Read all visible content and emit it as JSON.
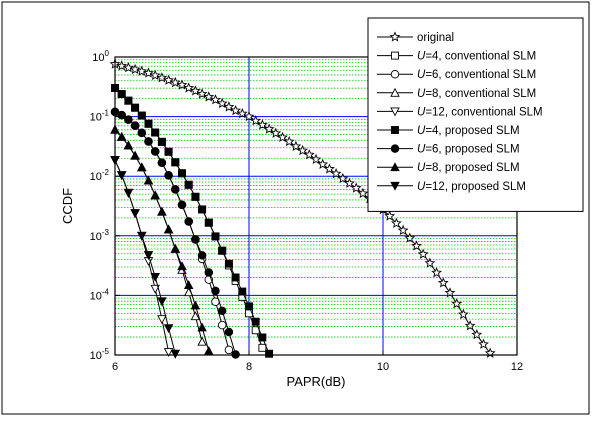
{
  "chart_data": {
    "type": "line",
    "x_label": "PAPR(dB)",
    "y_label": "CCDF",
    "xlim": [
      6,
      12
    ],
    "xticks": [
      6,
      8,
      10,
      12
    ],
    "ylim": [
      1e-05,
      1
    ],
    "y_log_scale": true,
    "yticks": [
      {
        "value": 1,
        "label": "10^0"
      },
      {
        "value": 0.1,
        "label": "10^-1"
      },
      {
        "value": 0.01,
        "label": "10^-2"
      },
      {
        "value": 0.001,
        "label": "10^-3"
      },
      {
        "value": 0.0001,
        "label": "10^-4"
      },
      {
        "value": 1e-05,
        "label": "10^-5"
      }
    ],
    "grid": true,
    "major_grid_color": "#0000ff",
    "minor_grid_color": "#00c800",
    "legend_position": "upper right",
    "series": [
      {
        "name": "original",
        "color": "#000000",
        "marker": "star",
        "filled": false,
        "x": [
          6,
          6.1,
          6.2,
          6.3,
          6.4,
          6.5,
          6.6,
          6.7,
          6.8,
          6.9,
          7,
          7.1,
          7.2,
          7.3,
          7.4,
          7.5,
          7.6,
          7.7,
          7.8,
          7.9,
          8,
          8.1,
          8.2,
          8.3,
          8.4,
          8.5,
          8.6,
          8.7,
          8.8,
          8.9,
          9,
          9.1,
          9.2,
          9.3,
          9.4,
          9.5,
          9.6,
          9.7,
          9.8,
          9.9,
          10,
          10.1,
          10.2,
          10.3,
          10.4,
          10.5,
          10.6,
          10.7,
          10.8,
          10.9,
          11,
          11.1,
          11.2,
          11.3,
          11.4,
          11.5,
          11.6
        ],
        "values": [
          0.759,
          0.708,
          0.661,
          0.617,
          0.575,
          0.537,
          0.49,
          0.447,
          0.407,
          0.372,
          0.339,
          0.302,
          0.269,
          0.24,
          0.214,
          0.191,
          0.166,
          0.145,
          0.126,
          0.112,
          0.1,
          0.0851,
          0.0724,
          0.0617,
          0.0525,
          0.0447,
          0.038,
          0.0316,
          0.0269,
          0.0229,
          0.0191,
          0.0158,
          0.0132,
          0.011,
          0.00912,
          0.00759,
          0.00631,
          0.00513,
          0.00417,
          0.00339,
          0.00275,
          0.00214,
          0.00162,
          0.00123,
          0.000912,
          0.000676,
          0.00049,
          0.000347,
          0.00024,
          0.000162,
          0.00011,
          7.24e-05,
          4.79e-05,
          3.09e-05,
          2.19e-05,
          1.51e-05,
          1.07e-05
        ]
      },
      {
        "name": "U=4, conventional SLM",
        "color": "#000000",
        "marker": "square",
        "filled": false,
        "x": [
          6,
          6.1,
          6.2,
          6.3,
          6.4,
          6.5,
          6.6,
          6.7,
          6.8,
          6.9,
          7,
          7.1,
          7.2,
          7.3,
          7.4,
          7.5,
          7.6,
          7.7,
          7.8,
          7.9,
          8,
          8.1,
          8.2
        ],
        "values": [
          0.302,
          0.239,
          0.185,
          0.141,
          0.104,
          0.0759,
          0.054,
          0.0377,
          0.0257,
          0.0171,
          0.0112,
          0.00718,
          0.00451,
          0.00277,
          0.00166,
          0.000977,
          0.000562,
          0.000318,
          0.000175,
          9.46e-05,
          5.01e-05,
          2.6e-05,
          1.32e-05
        ]
      },
      {
        "name": "U=6, conventional SLM",
        "color": "#000000",
        "marker": "circle",
        "filled": false,
        "x": [
          6,
          6.1,
          6.2,
          6.3,
          6.4,
          6.5,
          6.6,
          6.7,
          6.8,
          6.9,
          7,
          7.1,
          7.2,
          7.3,
          7.4,
          7.5,
          7.6,
          7.7
        ],
        "values": [
          0.12,
          0.106,
          0.0888,
          0.0706,
          0.0533,
          0.0382,
          0.026,
          0.0168,
          0.0103,
          0.006,
          0.00331,
          0.00174,
          0.000865,
          0.000409,
          0.000184,
          7.83e-05,
          3.17e-05,
          1.22e-05
        ]
      },
      {
        "name": "U=8, conventional SLM",
        "color": "#000000",
        "marker": "triangle-up",
        "filled": false,
        "x": [
          6,
          6.1,
          6.2,
          6.3,
          6.4,
          6.5,
          6.6,
          6.7,
          6.8,
          6.9,
          7,
          7.1,
          7.2,
          7.3
        ],
        "values": [
          0.0603,
          0.0458,
          0.0328,
          0.0221,
          0.0141,
          0.00844,
          0.00477,
          0.00254,
          0.00128,
          0.000604,
          0.000269,
          0.000113,
          4.48e-05,
          1.67e-05
        ]
      },
      {
        "name": "U=12, conventional SLM",
        "color": "#000000",
        "marker": "triangle-down",
        "filled": false,
        "x": [
          6,
          6.1,
          6.2,
          6.3,
          6.4,
          6.5,
          6.6,
          6.7,
          6.8
        ],
        "values": [
          0.0186,
          0.0104,
          0.00525,
          0.0024,
          0.001,
          0.000377,
          0.000129,
          3.99e-05,
          1.12e-05
        ]
      },
      {
        "name": "U=4, proposed SLM",
        "color": "#000000",
        "marker": "square",
        "filled": true,
        "x": [
          6,
          6.1,
          6.2,
          6.3,
          6.4,
          6.5,
          6.6,
          6.7,
          6.8,
          6.9,
          7,
          7.1,
          7.2,
          7.3,
          7.4,
          7.5,
          7.6,
          7.7,
          7.8,
          7.9,
          8,
          8.1,
          8.2,
          8.3
        ],
        "values": [
          0.302,
          0.239,
          0.185,
          0.141,
          0.104,
          0.0759,
          0.054,
          0.0377,
          0.0257,
          0.0171,
          0.0112,
          0.00718,
          0.00451,
          0.00277,
          0.00166,
          0.000977,
          0.000562,
          0.00034,
          0.0002,
          0.000116,
          6.55e-05,
          3.62e-05,
          1.97e-05,
          1.05e-05
        ]
      },
      {
        "name": "U=6, proposed SLM",
        "color": "#000000",
        "marker": "circle",
        "filled": true,
        "x": [
          6,
          6.1,
          6.2,
          6.3,
          6.4,
          6.5,
          6.6,
          6.7,
          6.8,
          6.9,
          7,
          7.1,
          7.2,
          7.3,
          7.4,
          7.5,
          7.6,
          7.7,
          7.8
        ],
        "values": [
          0.12,
          0.106,
          0.0888,
          0.0706,
          0.0533,
          0.0382,
          0.026,
          0.0168,
          0.0103,
          0.006,
          0.00331,
          0.00174,
          0.000865,
          0.00047,
          0.000242,
          0.000119,
          5.51e-05,
          2.43e-05,
          1.02e-05
        ]
      },
      {
        "name": "U=8, proposed SLM",
        "color": "#000000",
        "marker": "triangle-up",
        "filled": true,
        "x": [
          6,
          6.1,
          6.2,
          6.3,
          6.4,
          6.5,
          6.6,
          6.7,
          6.8,
          6.9,
          7,
          7.1,
          7.2,
          7.3,
          7.4
        ],
        "values": [
          0.0603,
          0.0458,
          0.0328,
          0.0221,
          0.0141,
          0.00844,
          0.00477,
          0.00254,
          0.00128,
          0.000604,
          0.000309,
          0.000149,
          6.78e-05,
          2.9e-05,
          1.17e-05
        ]
      },
      {
        "name": "U=12, proposed SLM",
        "color": "#000000",
        "marker": "triangle-down",
        "filled": true,
        "x": [
          6,
          6.1,
          6.2,
          6.3,
          6.4,
          6.5,
          6.6,
          6.7,
          6.8,
          6.9
        ],
        "values": [
          0.0186,
          0.0104,
          0.00525,
          0.0024,
          0.001,
          0.000474,
          0.000204,
          7.96e-05,
          2.82e-05,
          1.05e-05
        ]
      }
    ]
  }
}
